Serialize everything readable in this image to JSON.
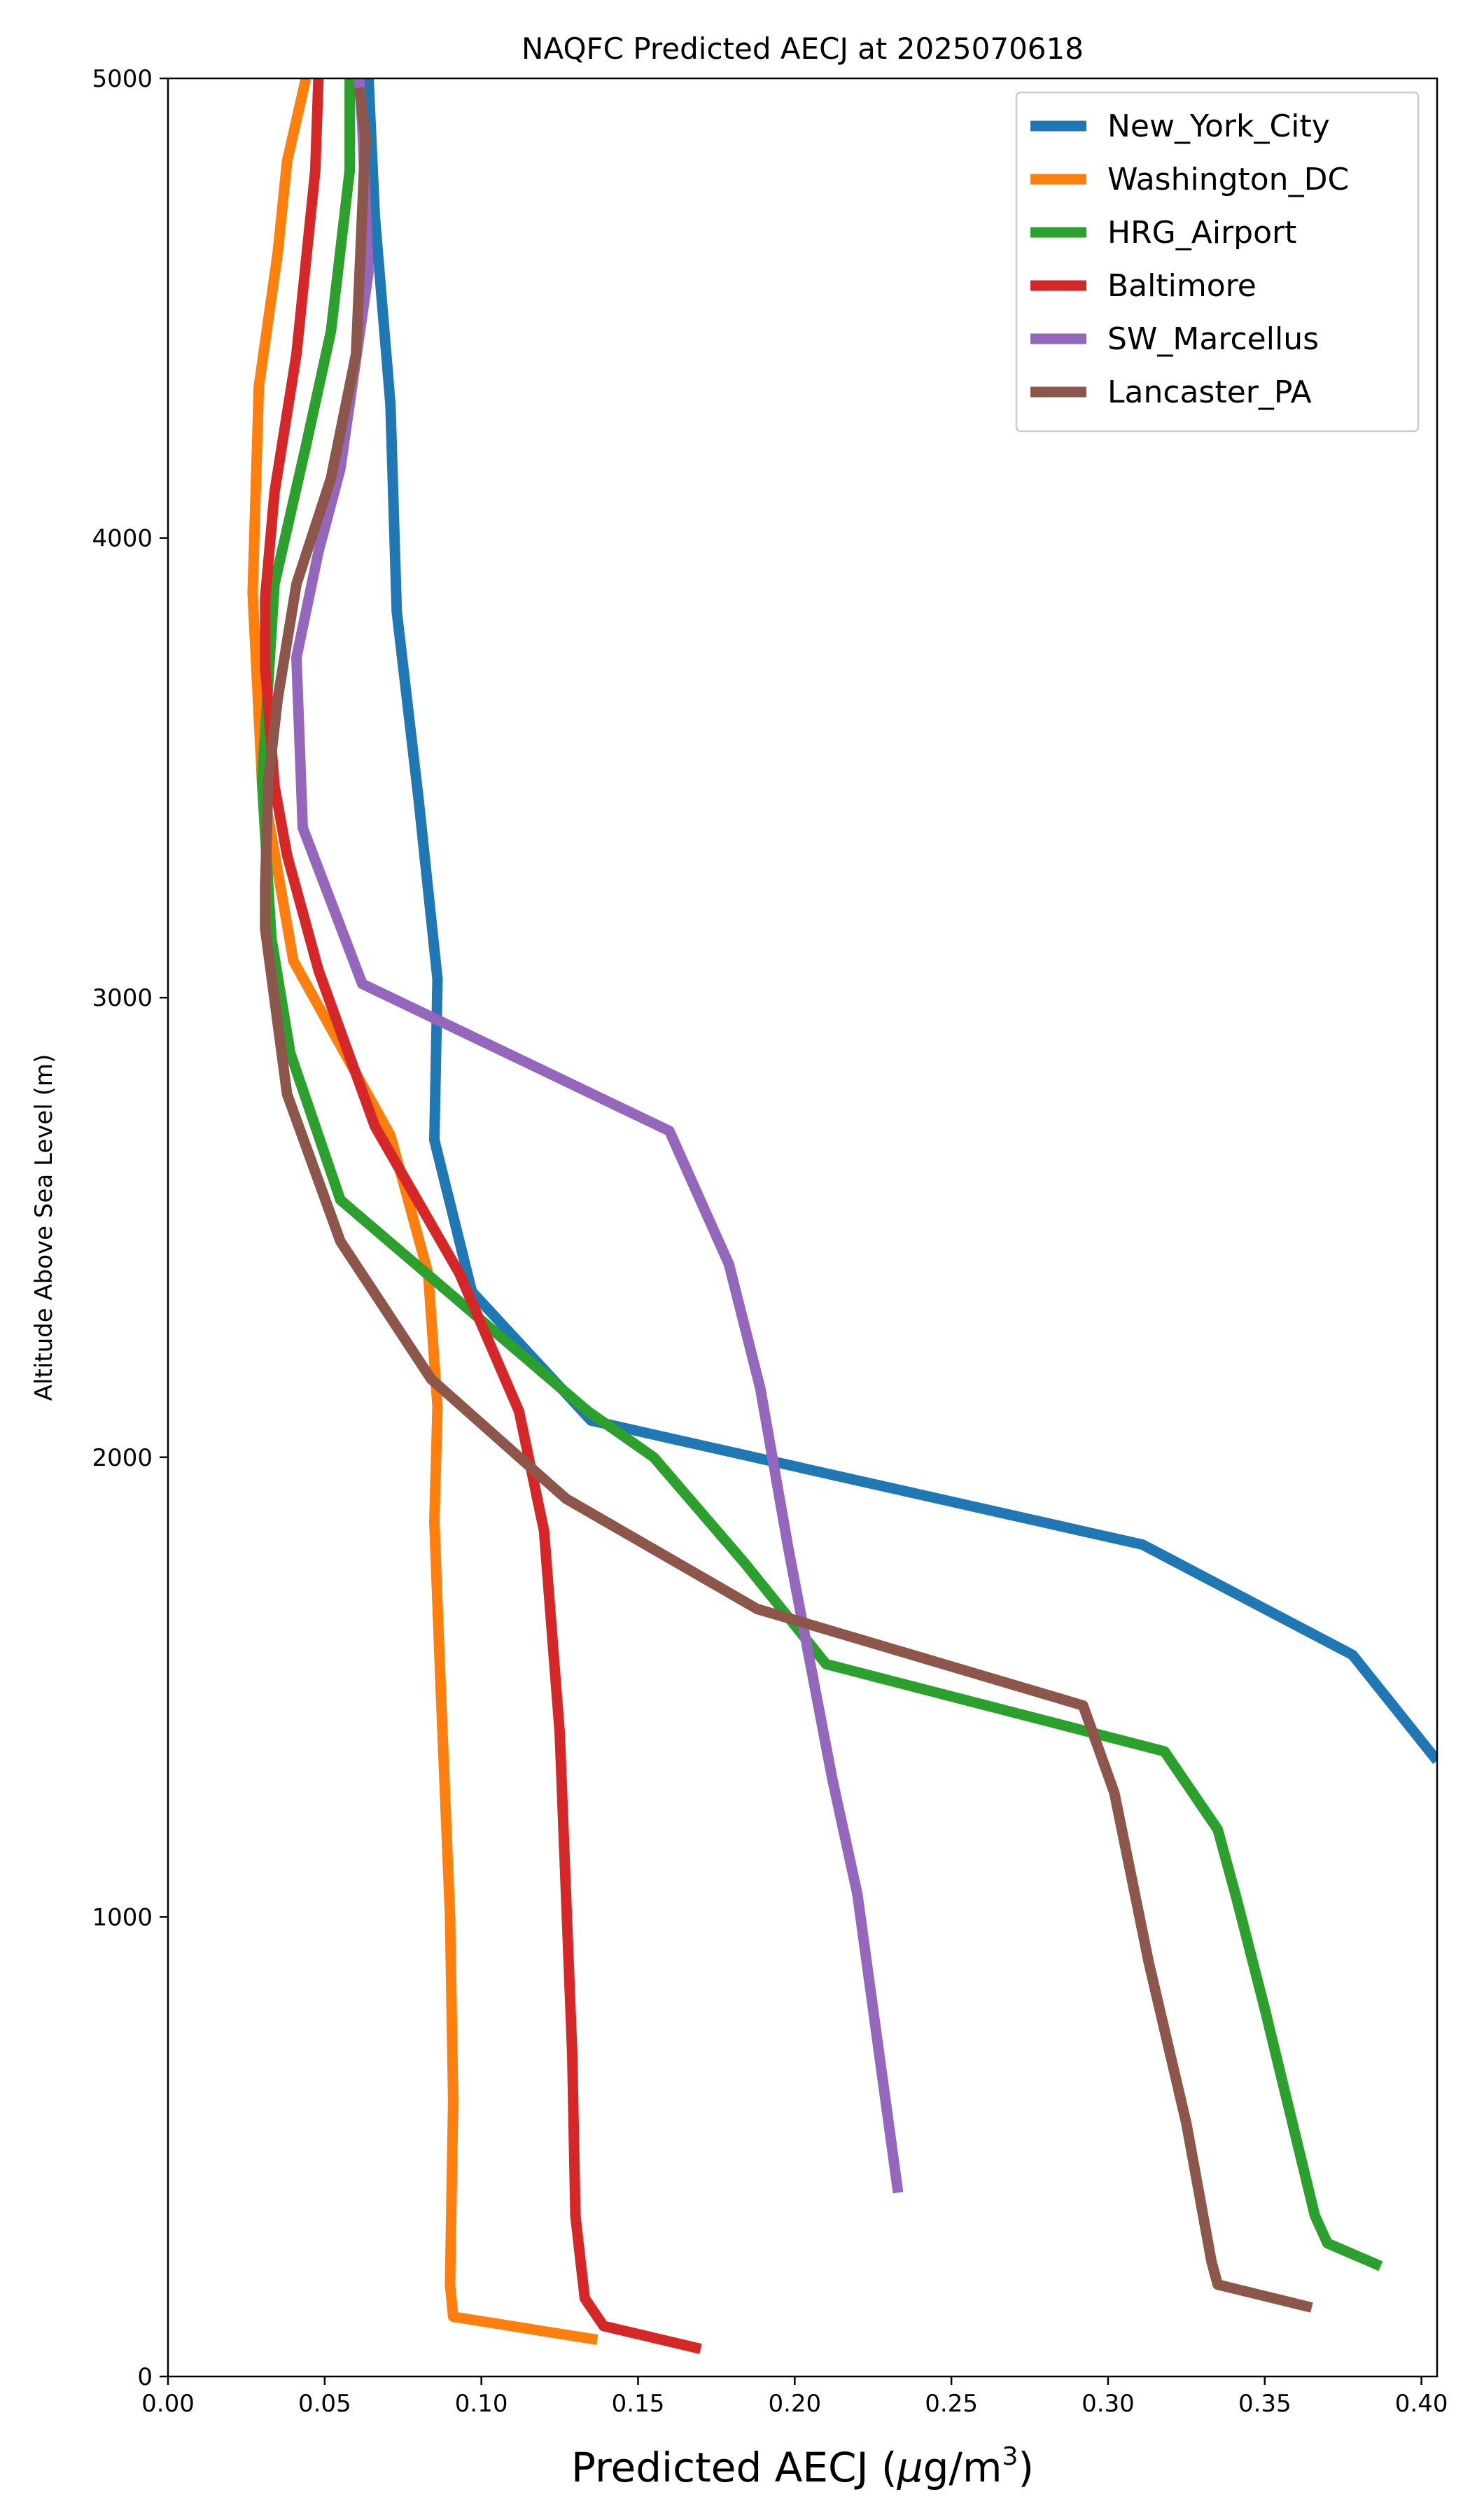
{
  "chart_data": {
    "type": "line",
    "title": "NAQFC Predicted AECJ at 2025070618",
    "xlabel_prefix": "Predicted AECJ (",
    "xlabel_mu": "μ",
    "xlabel_unit": "g/m",
    "xlabel_exp": "3",
    "xlabel_suffix": ")",
    "ylabel": "Altitude Above Sea Level (m)",
    "xlim": [
      0,
      0.405
    ],
    "ylim": [
      0,
      5000
    ],
    "xticks": [
      0.0,
      0.05,
      0.1,
      0.15,
      0.2,
      0.25,
      0.3,
      0.35,
      0.4
    ],
    "xtick_labels": [
      "0.00",
      "0.05",
      "0.10",
      "0.15",
      "0.20",
      "0.25",
      "0.30",
      "0.35",
      "0.40"
    ],
    "yticks": [
      0,
      1000,
      2000,
      3000,
      4000,
      5000
    ],
    "ytick_labels": [
      "0",
      "1000",
      "2000",
      "3000",
      "4000",
      "5000"
    ],
    "grid": false,
    "legend_position": "top-right",
    "series": [
      {
        "name": "New_York_City",
        "color": "#1f77b4",
        "points": [
          [
            0.405,
            1340
          ],
          [
            0.378,
            1570
          ],
          [
            0.311,
            1810
          ],
          [
            0.135,
            2080
          ],
          [
            0.097,
            2360
          ],
          [
            0.085,
            2690
          ],
          [
            0.086,
            3040
          ],
          [
            0.08,
            3430
          ],
          [
            0.073,
            3840
          ],
          [
            0.071,
            4290
          ],
          [
            0.066,
            4700
          ],
          [
            0.064,
            5000
          ]
        ]
      },
      {
        "name": "Washington_DC",
        "color": "#ff7f0e",
        "points": [
          [
            0.137,
            80
          ],
          [
            0.091,
            130
          ],
          [
            0.09,
            200
          ],
          [
            0.091,
            600
          ],
          [
            0.09,
            1000
          ],
          [
            0.087,
            1500
          ],
          [
            0.085,
            1860
          ],
          [
            0.086,
            2110
          ],
          [
            0.083,
            2400
          ],
          [
            0.071,
            2700
          ],
          [
            0.04,
            3080
          ],
          [
            0.03,
            3470
          ],
          [
            0.027,
            3880
          ],
          [
            0.029,
            4330
          ],
          [
            0.035,
            4620
          ],
          [
            0.038,
            4820
          ],
          [
            0.044,
            5000
          ]
        ]
      },
      {
        "name": "HRG_Airport",
        "color": "#2ca02c",
        "points": [
          [
            0.387,
            240
          ],
          [
            0.37,
            290
          ],
          [
            0.366,
            350
          ],
          [
            0.35,
            800
          ],
          [
            0.341,
            1040
          ],
          [
            0.335,
            1190
          ],
          [
            0.318,
            1360
          ],
          [
            0.21,
            1550
          ],
          [
            0.184,
            1770
          ],
          [
            0.155,
            2000
          ],
          [
            0.134,
            2100
          ],
          [
            0.055,
            2560
          ],
          [
            0.039,
            2880
          ],
          [
            0.033,
            3130
          ],
          [
            0.03,
            3470
          ],
          [
            0.034,
            3900
          ],
          [
            0.044,
            4200
          ],
          [
            0.052,
            4450
          ],
          [
            0.058,
            4800
          ],
          [
            0.058,
            5000
          ]
        ]
      },
      {
        "name": "Baltimore",
        "color": "#d62728",
        "points": [
          [
            0.17,
            60
          ],
          [
            0.139,
            110
          ],
          [
            0.133,
            170
          ],
          [
            0.132,
            230
          ],
          [
            0.13,
            350
          ],
          [
            0.129,
            700
          ],
          [
            0.125,
            1400
          ],
          [
            0.12,
            1840
          ],
          [
            0.112,
            2100
          ],
          [
            0.093,
            2400
          ],
          [
            0.066,
            2720
          ],
          [
            0.048,
            3060
          ],
          [
            0.038,
            3310
          ],
          [
            0.034,
            3460
          ],
          [
            0.031,
            3720
          ],
          [
            0.031,
            3870
          ],
          [
            0.034,
            4100
          ],
          [
            0.041,
            4400
          ],
          [
            0.047,
            4800
          ],
          [
            0.048,
            5000
          ]
        ]
      },
      {
        "name": "SW_Marcellus",
        "color": "#9467bd",
        "points": [
          [
            0.233,
            400
          ],
          [
            0.22,
            1050
          ],
          [
            0.212,
            1300
          ],
          [
            0.205,
            1550
          ],
          [
            0.198,
            1800
          ],
          [
            0.189,
            2150
          ],
          [
            0.179,
            2420
          ],
          [
            0.16,
            2710
          ],
          [
            0.062,
            3030
          ],
          [
            0.043,
            3370
          ],
          [
            0.041,
            3740
          ],
          [
            0.048,
            3970
          ],
          [
            0.055,
            4150
          ],
          [
            0.064,
            4580
          ],
          [
            0.062,
            4900
          ],
          [
            0.061,
            5000
          ]
        ]
      },
      {
        "name": "Lancaster_PA",
        "color": "#8c564b",
        "points": [
          [
            0.365,
            150
          ],
          [
            0.335,
            200
          ],
          [
            0.333,
            250
          ],
          [
            0.325,
            550
          ],
          [
            0.313,
            900
          ],
          [
            0.302,
            1270
          ],
          [
            0.292,
            1460
          ],
          [
            0.188,
            1670
          ],
          [
            0.127,
            1910
          ],
          [
            0.084,
            2170
          ],
          [
            0.055,
            2470
          ],
          [
            0.038,
            2790
          ],
          [
            0.031,
            3150
          ],
          [
            0.031,
            3240
          ],
          [
            0.032,
            3470
          ],
          [
            0.035,
            3650
          ],
          [
            0.041,
            3900
          ],
          [
            0.052,
            4130
          ],
          [
            0.06,
            4400
          ],
          [
            0.063,
            4870
          ],
          [
            0.061,
            4980
          ]
        ]
      }
    ]
  }
}
